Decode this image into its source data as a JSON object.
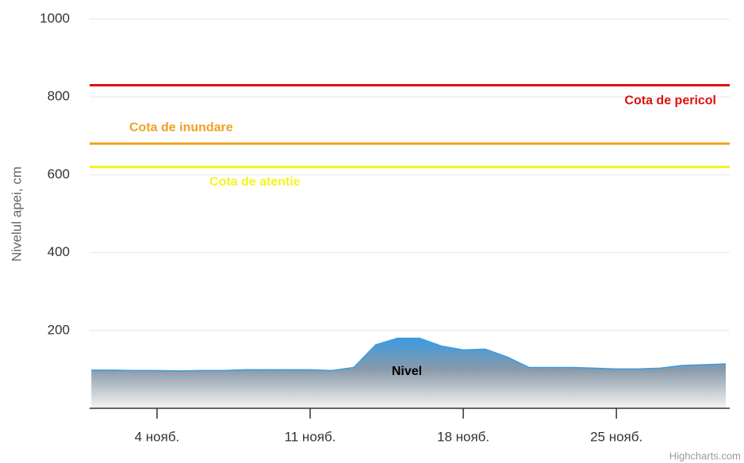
{
  "chart_data": {
    "type": "area",
    "y_axis_label": "Nivelul apei, cm",
    "x": [
      1,
      2,
      3,
      4,
      5,
      6,
      7,
      8,
      9,
      10,
      11,
      12,
      13,
      14,
      15,
      16,
      17,
      18,
      19,
      20,
      21,
      22,
      23,
      24,
      25,
      26,
      27,
      28,
      29,
      30
    ],
    "series": [
      {
        "name": "Nivel",
        "color": "#3a9be0",
        "values": [
          98,
          98,
          97,
          97,
          96,
          97,
          97,
          99,
          99,
          99,
          99,
          97,
          105,
          163,
          180,
          180,
          160,
          150,
          152,
          132,
          105,
          105,
          105,
          103,
          101,
          101,
          103,
          110,
          112,
          114
        ]
      }
    ],
    "xlim": [
      0.92,
      30.18
    ],
    "xticks": [
      {
        "value": 4,
        "label": "4 нояб."
      },
      {
        "value": 11,
        "label": "11 нояб."
      },
      {
        "value": 18,
        "label": "18 нояб."
      },
      {
        "value": 25,
        "label": "25 нояб."
      }
    ],
    "ylim": [
      0,
      1000
    ],
    "yticks": [
      200,
      400,
      600,
      800,
      1000
    ],
    "grid": true,
    "plot_lines": [
      {
        "value": 830,
        "label": "Cota de pericol",
        "color": "#e01010"
      },
      {
        "value": 680,
        "label": "Cota de inundare",
        "color": "#f0a020"
      },
      {
        "value": 620,
        "label": "Cota de atentie",
        "color": "#f5f520"
      }
    ],
    "credits": "Highcharts.com"
  }
}
